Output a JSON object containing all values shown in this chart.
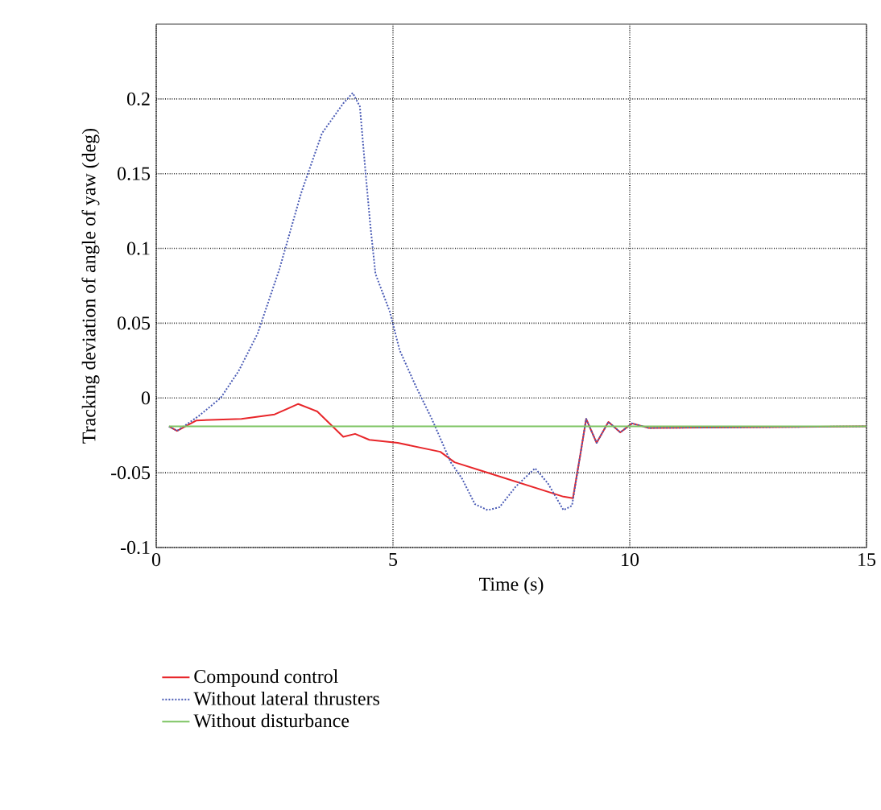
{
  "chart_data": {
    "type": "line",
    "xlabel": "Time (s)",
    "ylabel": "Tracking deviation of angle of yaw (deg)",
    "xlim": [
      0,
      15
    ],
    "xticks": [
      0,
      5,
      10,
      15
    ],
    "ylim": [
      -0.1,
      0.25
    ],
    "yticks": [
      -0.1,
      -0.05,
      0,
      0.05,
      0.1,
      0.15,
      0.2
    ],
    "grid": true,
    "legend": "bottom",
    "series": [
      {
        "name": "Compound control",
        "color": "#e8262a",
        "line_style": "solid",
        "x": [
          0.27,
          0.44,
          0.85,
          1.8,
          2.5,
          3.0,
          3.4,
          3.95,
          4.2,
          4.5,
          5.1,
          6.0,
          6.3,
          6.9,
          8.6,
          8.8,
          8.95,
          9.08,
          9.3,
          9.55,
          9.8,
          10.05,
          10.4,
          15
        ],
        "values": [
          -0.019,
          -0.022,
          -0.015,
          -0.014,
          -0.011,
          -0.004,
          -0.009,
          -0.026,
          -0.024,
          -0.028,
          -0.03,
          -0.036,
          -0.043,
          -0.049,
          -0.066,
          -0.067,
          -0.039,
          -0.014,
          -0.03,
          -0.016,
          -0.023,
          -0.017,
          -0.02,
          -0.019
        ]
      },
      {
        "name": "Without lateral thrusters",
        "color": "#4a5bb5",
        "line_style": "dotted",
        "x": [
          0.27,
          0.44,
          0.9,
          1.36,
          1.74,
          2.14,
          2.6,
          3.06,
          3.5,
          3.95,
          4.15,
          4.3,
          4.42,
          4.52,
          4.63,
          4.93,
          5.14,
          5.48,
          5.82,
          6.22,
          6.46,
          6.73,
          7.0,
          7.25,
          7.6,
          8.0,
          8.27,
          8.6,
          8.78,
          8.95,
          9.08,
          9.3,
          9.55,
          9.8,
          10.05,
          10.4,
          15
        ],
        "values": [
          -0.019,
          -0.022,
          -0.012,
          0.0,
          0.018,
          0.043,
          0.086,
          0.137,
          0.177,
          0.197,
          0.204,
          0.195,
          0.151,
          0.116,
          0.083,
          0.058,
          0.032,
          0.008,
          -0.014,
          -0.043,
          -0.054,
          -0.071,
          -0.075,
          -0.073,
          -0.059,
          -0.047,
          -0.057,
          -0.075,
          -0.072,
          -0.039,
          -0.014,
          -0.03,
          -0.016,
          -0.023,
          -0.017,
          -0.02,
          -0.019
        ]
      },
      {
        "name": "Without disturbance",
        "color": "#7dc462",
        "line_style": "solid",
        "x": [
          0.27,
          15
        ],
        "values": [
          -0.019,
          -0.019
        ]
      }
    ]
  }
}
